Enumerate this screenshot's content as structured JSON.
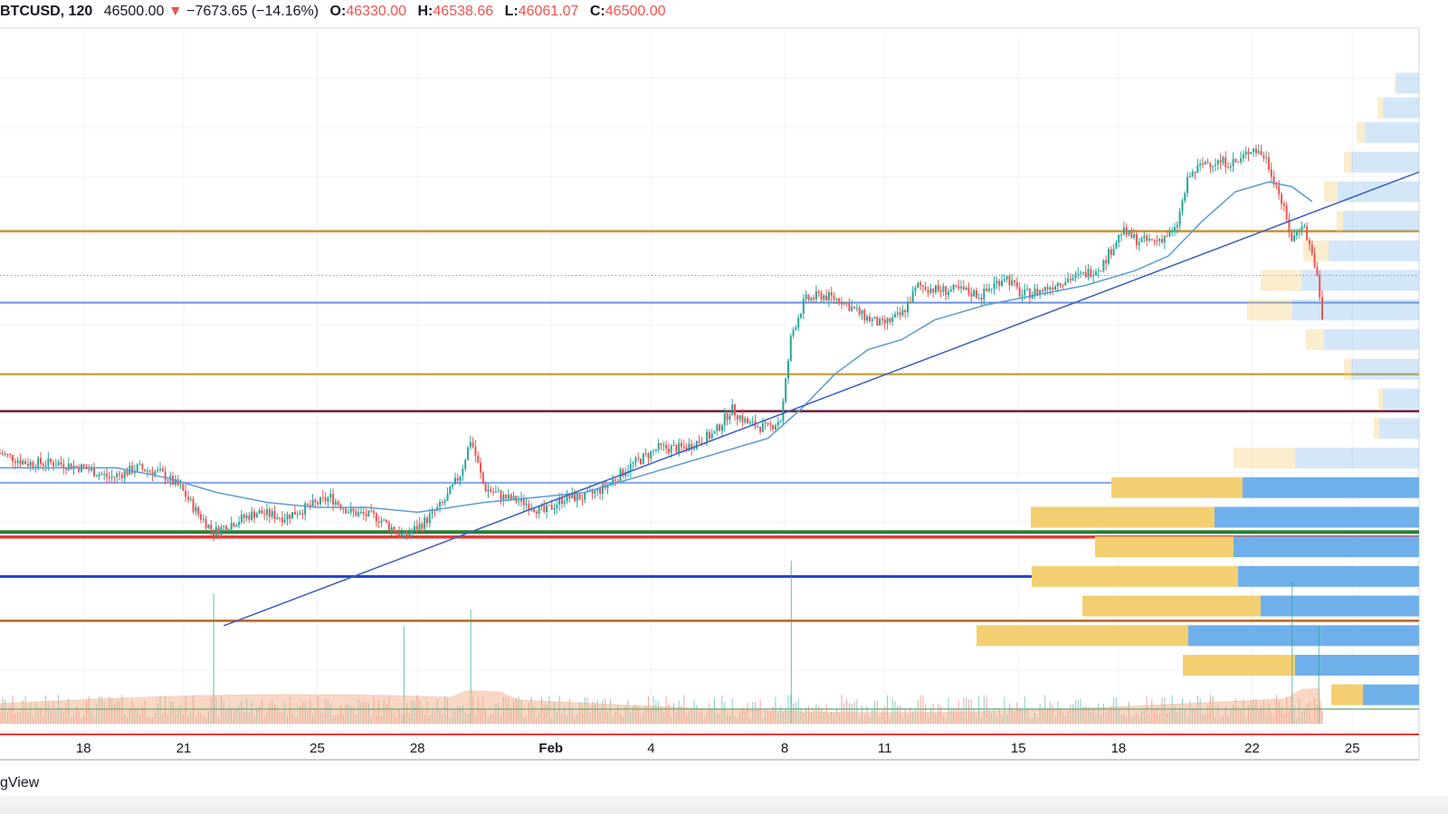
{
  "header": {
    "symbol": "BTCUSD, 120",
    "price": "46500.00",
    "change": "−7673.65 (−14.16%)",
    "open_label": "O:",
    "open": "46330.00",
    "high_label": "H:",
    "high": "46538.66",
    "low_label": "L:",
    "low": "46061.07",
    "close_label": "C:",
    "close": "46500.00"
  },
  "watermark": "gView",
  "colors": {
    "up": "#26a69a",
    "down": "#ef5350",
    "ma": "#5b9bd5",
    "trendline": "#3b5fc0",
    "vp_up": "#f4cf72",
    "vp_down": "#6fb0ea"
  },
  "chart_data": {
    "type": "candlestick",
    "x_tick_labels": [
      "18",
      "21",
      "25",
      "28",
      "Feb",
      "4",
      "8",
      "11",
      "15",
      "18",
      "22",
      "25"
    ],
    "x_ticks_day": [
      18,
      21,
      25,
      28,
      32,
      35,
      39,
      42,
      46,
      49,
      53,
      56
    ],
    "x_range_day": [
      15.5,
      58
    ],
    "y_range_index": [
      0,
      100
    ],
    "close_path": [
      {
        "d": 15.5,
        "v": 24
      },
      {
        "d": 16.3,
        "v": 22
      },
      {
        "d": 17.2,
        "v": 22
      },
      {
        "d": 18.0,
        "v": 21
      },
      {
        "d": 18.8,
        "v": 19
      },
      {
        "d": 19.6,
        "v": 21
      },
      {
        "d": 20.3,
        "v": 20
      },
      {
        "d": 20.9,
        "v": 17
      },
      {
        "d": 21.4,
        "v": 12
      },
      {
        "d": 21.9,
        "v": 8
      },
      {
        "d": 22.5,
        "v": 10
      },
      {
        "d": 23.2,
        "v": 12
      },
      {
        "d": 24.0,
        "v": 11
      },
      {
        "d": 24.7,
        "v": 13
      },
      {
        "d": 25.4,
        "v": 15
      },
      {
        "d": 26.0,
        "v": 12
      },
      {
        "d": 26.8,
        "v": 11
      },
      {
        "d": 27.6,
        "v": 7
      },
      {
        "d": 28.2,
        "v": 10
      },
      {
        "d": 28.8,
        "v": 14
      },
      {
        "d": 29.3,
        "v": 20
      },
      {
        "d": 29.6,
        "v": 27
      },
      {
        "d": 30.0,
        "v": 17
      },
      {
        "d": 30.6,
        "v": 15
      },
      {
        "d": 31.2,
        "v": 14
      },
      {
        "d": 31.8,
        "v": 12
      },
      {
        "d": 32.4,
        "v": 15
      },
      {
        "d": 33.0,
        "v": 15
      },
      {
        "d": 33.6,
        "v": 17
      },
      {
        "d": 34.3,
        "v": 21
      },
      {
        "d": 35.2,
        "v": 25
      },
      {
        "d": 36.0,
        "v": 25
      },
      {
        "d": 36.9,
        "v": 28
      },
      {
        "d": 37.4,
        "v": 33
      },
      {
        "d": 37.9,
        "v": 30
      },
      {
        "d": 38.5,
        "v": 29
      },
      {
        "d": 38.9,
        "v": 31
      },
      {
        "d": 39.2,
        "v": 48
      },
      {
        "d": 39.6,
        "v": 55
      },
      {
        "d": 40.1,
        "v": 56
      },
      {
        "d": 40.7,
        "v": 55
      },
      {
        "d": 41.3,
        "v": 52
      },
      {
        "d": 41.9,
        "v": 50
      },
      {
        "d": 42.5,
        "v": 52
      },
      {
        "d": 43.0,
        "v": 58
      },
      {
        "d": 43.6,
        "v": 57
      },
      {
        "d": 44.3,
        "v": 57
      },
      {
        "d": 44.9,
        "v": 56
      },
      {
        "d": 45.6,
        "v": 60
      },
      {
        "d": 46.1,
        "v": 56
      },
      {
        "d": 46.7,
        "v": 57
      },
      {
        "d": 47.3,
        "v": 59
      },
      {
        "d": 47.9,
        "v": 60
      },
      {
        "d": 48.5,
        "v": 62
      },
      {
        "d": 49.1,
        "v": 69
      },
      {
        "d": 49.6,
        "v": 67
      },
      {
        "d": 50.1,
        "v": 67
      },
      {
        "d": 50.7,
        "v": 69
      },
      {
        "d": 51.1,
        "v": 80
      },
      {
        "d": 51.6,
        "v": 83
      },
      {
        "d": 52.1,
        "v": 83
      },
      {
        "d": 52.6,
        "v": 83
      },
      {
        "d": 53.0,
        "v": 86
      },
      {
        "d": 53.4,
        "v": 84
      },
      {
        "d": 53.8,
        "v": 77
      },
      {
        "d": 54.2,
        "v": 67
      },
      {
        "d": 54.5,
        "v": 71
      },
      {
        "d": 54.9,
        "v": 62
      },
      {
        "d": 55.1,
        "v": 51
      }
    ],
    "ma_path": [
      {
        "d": 15.5,
        "v": 21
      },
      {
        "d": 17.0,
        "v": 21
      },
      {
        "d": 19.0,
        "v": 21
      },
      {
        "d": 20.5,
        "v": 19
      },
      {
        "d": 22.0,
        "v": 16
      },
      {
        "d": 23.5,
        "v": 14
      },
      {
        "d": 25.0,
        "v": 13
      },
      {
        "d": 26.5,
        "v": 13
      },
      {
        "d": 28.0,
        "v": 12
      },
      {
        "d": 29.0,
        "v": 13
      },
      {
        "d": 30.0,
        "v": 14
      },
      {
        "d": 31.5,
        "v": 15
      },
      {
        "d": 33.0,
        "v": 16
      },
      {
        "d": 35.0,
        "v": 20
      },
      {
        "d": 37.0,
        "v": 24
      },
      {
        "d": 38.5,
        "v": 27
      },
      {
        "d": 39.5,
        "v": 33
      },
      {
        "d": 40.5,
        "v": 40
      },
      {
        "d": 41.5,
        "v": 45
      },
      {
        "d": 42.5,
        "v": 47
      },
      {
        "d": 43.5,
        "v": 51
      },
      {
        "d": 45.0,
        "v": 54
      },
      {
        "d": 46.5,
        "v": 56
      },
      {
        "d": 48.0,
        "v": 58
      },
      {
        "d": 49.5,
        "v": 61
      },
      {
        "d": 50.5,
        "v": 64
      },
      {
        "d": 51.5,
        "v": 71
      },
      {
        "d": 52.5,
        "v": 77
      },
      {
        "d": 53.5,
        "v": 79
      },
      {
        "d": 54.2,
        "v": 78
      },
      {
        "d": 54.8,
        "v": 75
      }
    ],
    "trendline": [
      {
        "d": 22.2,
        "v": -11
      },
      {
        "d": 58,
        "v": 81
      }
    ],
    "horizontal_levels": [
      {
        "v": 69.0,
        "color": "#c9922f",
        "width": 2.5
      },
      {
        "v": 54.5,
        "color": "#6d91e0",
        "width": 2
      },
      {
        "v": 40.0,
        "color": "#c9a64b",
        "width": 2.5
      },
      {
        "v": 32.5,
        "color": "#6e1f3e",
        "width": 2.5
      },
      {
        "v": 18.0,
        "color": "#7fa2ea",
        "width": 2
      },
      {
        "v": 8.0,
        "color": "#2e7d32",
        "width": 4
      },
      {
        "v": 7.0,
        "color": "#e53935",
        "width": 3.5
      },
      {
        "v": -1.0,
        "color": "#1e40d0",
        "width": 3
      },
      {
        "v": -10.0,
        "color": "#b5651d",
        "width": 2.5
      }
    ],
    "volume_profile": [
      {
        "v": 99,
        "up": 2,
        "down": 25
      },
      {
        "v": 94,
        "up": 6,
        "down": 40
      },
      {
        "v": 89,
        "up": 9,
        "down": 60
      },
      {
        "v": 83,
        "up": 8,
        "down": 75
      },
      {
        "v": 77,
        "up": 15,
        "down": 90
      },
      {
        "v": 71,
        "up": 7,
        "down": 84
      },
      {
        "v": 65,
        "up": 28,
        "down": 100
      },
      {
        "v": 59,
        "up": 45,
        "down": 130
      },
      {
        "v": 53,
        "up": 50,
        "down": 140
      },
      {
        "v": 47,
        "up": 20,
        "down": 105
      },
      {
        "v": 41,
        "up": 8,
        "down": 75
      },
      {
        "v": 35,
        "up": 5,
        "down": 40
      },
      {
        "v": 29,
        "up": 6,
        "down": 44
      },
      {
        "v": 23,
        "up": 68,
        "down": 137
      },
      {
        "v": 17,
        "up": 145,
        "down": 195
      },
      {
        "v": 11,
        "up": 203,
        "down": 226
      },
      {
        "v": 5,
        "up": 153,
        "down": 205
      },
      {
        "v": -1,
        "up": 228,
        "down": 200
      },
      {
        "v": -7,
        "up": 197,
        "down": 175
      },
      {
        "v": -13,
        "up": 234,
        "down": 255
      },
      {
        "v": -19,
        "up": 124,
        "down": 137
      },
      {
        "v": -25,
        "up": 35,
        "down": 62
      }
    ],
    "volume_spikes": [
      {
        "d": 21.9,
        "v": 3.2
      },
      {
        "d": 27.6,
        "v": 2.4
      },
      {
        "d": 29.6,
        "v": 2.8
      },
      {
        "d": 39.2,
        "v": 4.0
      },
      {
        "d": 54.2,
        "v": 3.5
      },
      {
        "d": 55.0,
        "v": 2.4
      }
    ],
    "volume_baseline_color": "#e53935",
    "volume_ma_color": "#f2b08a",
    "volume_reference_line_color": "#7fb07f"
  }
}
